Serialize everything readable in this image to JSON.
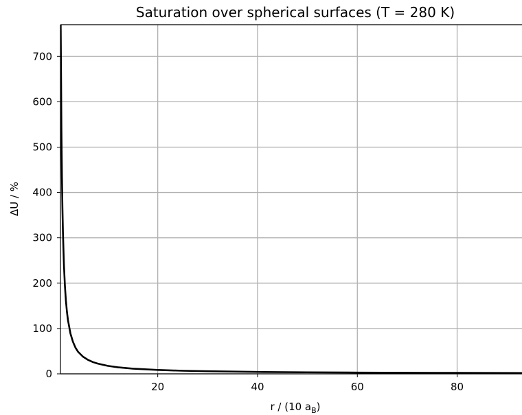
{
  "chart_data": {
    "type": "line",
    "title": "Saturation over spherical surfaces (T = 280 K)",
    "xlabel": "r / (10 a",
    "xlabel_sub": "B",
    "xlabel_close": ")",
    "ylabel": "ΔU / %",
    "xlim": [
      0.5,
      93
    ],
    "ylim": [
      0,
      770
    ],
    "xticks": [
      20,
      40,
      60,
      80
    ],
    "yticks": [
      0,
      100,
      200,
      300,
      400,
      500,
      600,
      700
    ],
    "grid": true,
    "series": [
      {
        "color": "#000000",
        "x": [
          0.55,
          0.6,
          0.7,
          0.8,
          0.9,
          1.0,
          1.2,
          1.4,
          1.6,
          1.8,
          2.0,
          2.5,
          3.0,
          3.5,
          4.0,
          5.0,
          6.0,
          7.0,
          8.0,
          10.0,
          12.0,
          15.0,
          20.0,
          25.0,
          30.0,
          40.0,
          50.0,
          60.0,
          70.0,
          80.0,
          93.0
        ],
        "y": [
          770,
          690,
          535,
          435,
          365,
          312,
          240,
          193,
          161,
          137,
          119,
          89,
          71,
          58,
          49,
          38,
          31,
          26,
          22.5,
          17.6,
          14.5,
          11.5,
          8.6,
          6.8,
          5.7,
          4.2,
          3.4,
          2.8,
          2.4,
          2.1,
          1.8
        ]
      }
    ]
  }
}
